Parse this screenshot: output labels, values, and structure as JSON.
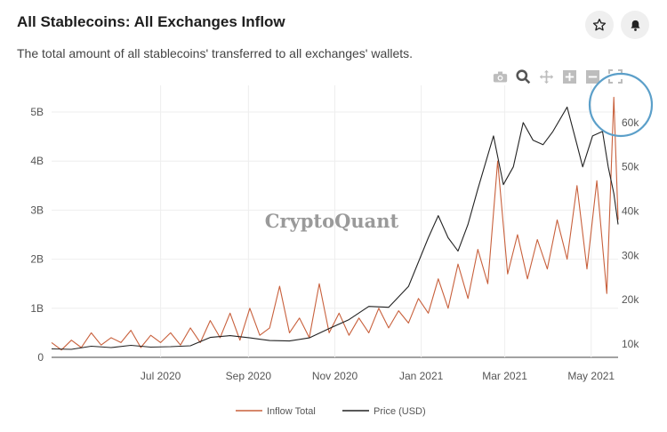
{
  "header": {
    "title": "All Stablecoins: All Exchanges Inflow",
    "subtitle": "The total amount of all stablecoins' transferred to all exchanges' wallets."
  },
  "actions": {
    "star_icon": "star-icon",
    "bell_icon": "bell-icon"
  },
  "modebar": [
    "camera-icon",
    "zoom-icon",
    "pan-icon",
    "zoom-in-icon",
    "zoom-out-icon",
    "autoscale-icon"
  ],
  "watermark": "CryptoQuant",
  "colors": {
    "inflow": "#c8603c",
    "price": "#222222",
    "grid": "#eeeeee",
    "highlight_circle": "#5b9fc9"
  },
  "chart_data": {
    "type": "line",
    "x_ticks": [
      "Jul 2020",
      "Sep 2020",
      "Nov 2020",
      "Jan 2021",
      "Mar 2021",
      "May 2021"
    ],
    "x_range": [
      "2020-04-15",
      "2021-05-20"
    ],
    "y_left": {
      "ticks": [
        "0",
        "1B",
        "2B",
        "3B",
        "4B",
        "5B"
      ],
      "range": [
        0,
        5.0
      ]
    },
    "y_right": {
      "ticks": [
        "10k",
        "20k",
        "30k",
        "40k",
        "50k",
        "60k"
      ],
      "range": [
        7000,
        65000
      ]
    },
    "series": [
      {
        "name": "Inflow Total",
        "axis": "left",
        "unit": "B",
        "points": [
          [
            "2020-04-15",
            0.3
          ],
          [
            "2020-04-22",
            0.15
          ],
          [
            "2020-04-29",
            0.35
          ],
          [
            "2020-05-06",
            0.2
          ],
          [
            "2020-05-13",
            0.5
          ],
          [
            "2020-05-20",
            0.25
          ],
          [
            "2020-05-27",
            0.4
          ],
          [
            "2020-06-03",
            0.3
          ],
          [
            "2020-06-10",
            0.55
          ],
          [
            "2020-06-17",
            0.2
          ],
          [
            "2020-06-24",
            0.45
          ],
          [
            "2020-07-01",
            0.3
          ],
          [
            "2020-07-08",
            0.5
          ],
          [
            "2020-07-15",
            0.25
          ],
          [
            "2020-07-22",
            0.6
          ],
          [
            "2020-07-29",
            0.3
          ],
          [
            "2020-08-05",
            0.75
          ],
          [
            "2020-08-12",
            0.4
          ],
          [
            "2020-08-19",
            0.9
          ],
          [
            "2020-08-26",
            0.35
          ],
          [
            "2020-09-02",
            1.0
          ],
          [
            "2020-09-09",
            0.45
          ],
          [
            "2020-09-16",
            0.6
          ],
          [
            "2020-09-23",
            1.45
          ],
          [
            "2020-09-30",
            0.5
          ],
          [
            "2020-10-07",
            0.8
          ],
          [
            "2020-10-14",
            0.4
          ],
          [
            "2020-10-21",
            1.5
          ],
          [
            "2020-10-28",
            0.5
          ],
          [
            "2020-11-04",
            0.9
          ],
          [
            "2020-11-11",
            0.45
          ],
          [
            "2020-11-18",
            0.8
          ],
          [
            "2020-11-25",
            0.5
          ],
          [
            "2020-12-02",
            1.0
          ],
          [
            "2020-12-09",
            0.6
          ],
          [
            "2020-12-16",
            0.95
          ],
          [
            "2020-12-23",
            0.7
          ],
          [
            "2020-12-30",
            1.2
          ],
          [
            "2021-01-06",
            0.9
          ],
          [
            "2021-01-13",
            1.6
          ],
          [
            "2021-01-20",
            1.0
          ],
          [
            "2021-01-27",
            1.9
          ],
          [
            "2021-02-03",
            1.2
          ],
          [
            "2021-02-10",
            2.2
          ],
          [
            "2021-02-17",
            1.5
          ],
          [
            "2021-02-24",
            4.0
          ],
          [
            "2021-03-03",
            1.7
          ],
          [
            "2021-03-10",
            2.5
          ],
          [
            "2021-03-17",
            1.6
          ],
          [
            "2021-03-24",
            2.4
          ],
          [
            "2021-03-31",
            1.8
          ],
          [
            "2021-04-07",
            2.8
          ],
          [
            "2021-04-14",
            2.0
          ],
          [
            "2021-04-21",
            3.5
          ],
          [
            "2021-04-28",
            1.8
          ],
          [
            "2021-05-05",
            3.6
          ],
          [
            "2021-05-12",
            1.3
          ],
          [
            "2021-05-17",
            5.3
          ],
          [
            "2021-05-20",
            2.8
          ]
        ]
      },
      {
        "name": "Price (USD)",
        "axis": "right",
        "unit": "USD",
        "points": [
          [
            "2020-04-15",
            8900
          ],
          [
            "2020-04-29",
            8800
          ],
          [
            "2020-05-13",
            9500
          ],
          [
            "2020-05-27",
            9200
          ],
          [
            "2020-06-10",
            9700
          ],
          [
            "2020-06-24",
            9300
          ],
          [
            "2020-07-08",
            9400
          ],
          [
            "2020-07-22",
            9600
          ],
          [
            "2020-08-05",
            11500
          ],
          [
            "2020-08-19",
            11900
          ],
          [
            "2020-09-02",
            11400
          ],
          [
            "2020-09-16",
            10800
          ],
          [
            "2020-09-30",
            10700
          ],
          [
            "2020-10-14",
            11400
          ],
          [
            "2020-10-28",
            13500
          ],
          [
            "2020-11-11",
            15500
          ],
          [
            "2020-11-25",
            18500
          ],
          [
            "2020-12-09",
            18300
          ],
          [
            "2020-12-23",
            23000
          ],
          [
            "2021-01-06",
            34000
          ],
          [
            "2021-01-13",
            39000
          ],
          [
            "2021-01-20",
            34000
          ],
          [
            "2021-01-27",
            31000
          ],
          [
            "2021-02-03",
            37000
          ],
          [
            "2021-02-10",
            45000
          ],
          [
            "2021-02-21",
            57000
          ],
          [
            "2021-02-28",
            46000
          ],
          [
            "2021-03-07",
            50000
          ],
          [
            "2021-03-14",
            60000
          ],
          [
            "2021-03-21",
            56000
          ],
          [
            "2021-03-28",
            55000
          ],
          [
            "2021-04-04",
            58000
          ],
          [
            "2021-04-14",
            63500
          ],
          [
            "2021-04-21",
            55000
          ],
          [
            "2021-04-25",
            50000
          ],
          [
            "2021-05-02",
            57000
          ],
          [
            "2021-05-09",
            58000
          ],
          [
            "2021-05-13",
            50000
          ],
          [
            "2021-05-17",
            44000
          ],
          [
            "2021-05-20",
            37000
          ]
        ]
      }
    ],
    "legend": {
      "placement": "bottom-center",
      "entries": [
        "Inflow Total",
        "Price (USD)"
      ]
    },
    "grid": true
  }
}
